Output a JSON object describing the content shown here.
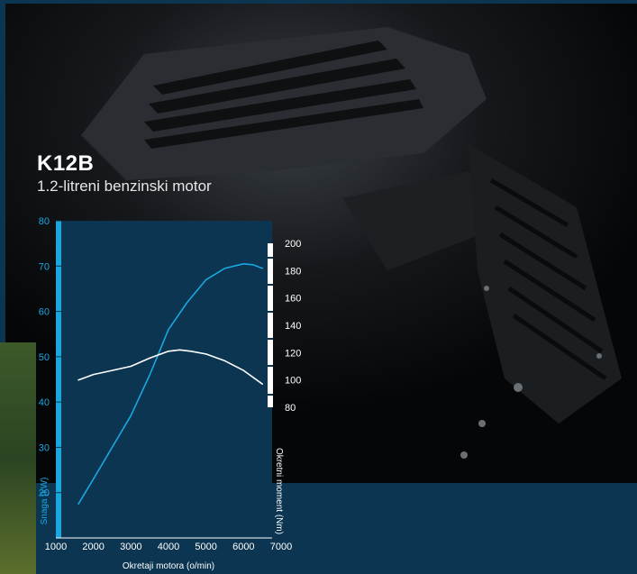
{
  "engine": {
    "name": "K12B",
    "description": "1.2-litreni benzinski motor"
  },
  "colors": {
    "power_line": "#1aa7e0",
    "torque_line": "#ffffff",
    "left_axis": "#1aa7e0",
    "background": "#0b3550"
  },
  "chart_data": {
    "type": "line",
    "xlabel": "Okretaji motora (o/min)",
    "ylabel": "Snaga (kW)",
    "y2label": "Okretni moment (Nm)",
    "xlim": [
      1000,
      7000
    ],
    "ylim": [
      10,
      80
    ],
    "y2lim": [
      80,
      200
    ],
    "x_ticks": [
      1000,
      2000,
      3000,
      4000,
      5000,
      6000,
      7000
    ],
    "y_ticks": [
      20,
      30,
      40,
      50,
      60,
      70,
      80
    ],
    "y2_ticks": [
      80,
      100,
      120,
      140,
      160,
      180,
      200
    ],
    "grid": false,
    "series": [
      {
        "axis": "left",
        "color": "#1aa7e0",
        "x": [
          1600,
          2000,
          2500,
          3000,
          3500,
          4000,
          4500,
          5000,
          5500,
          6000,
          6250,
          6500
        ],
        "y": [
          17.5,
          23,
          30,
          37,
          46,
          56,
          62,
          67,
          69.5,
          70.5,
          70.3,
          69.5
        ]
      },
      {
        "axis": "right",
        "color": "#ffffff",
        "x": [
          1600,
          2000,
          2500,
          3000,
          3500,
          4000,
          4300,
          4600,
          5000,
          5500,
          6000,
          6500
        ],
        "y": [
          100,
          104,
          107,
          110,
          116,
          121,
          122,
          121,
          119,
          114,
          107,
          97
        ]
      }
    ]
  }
}
